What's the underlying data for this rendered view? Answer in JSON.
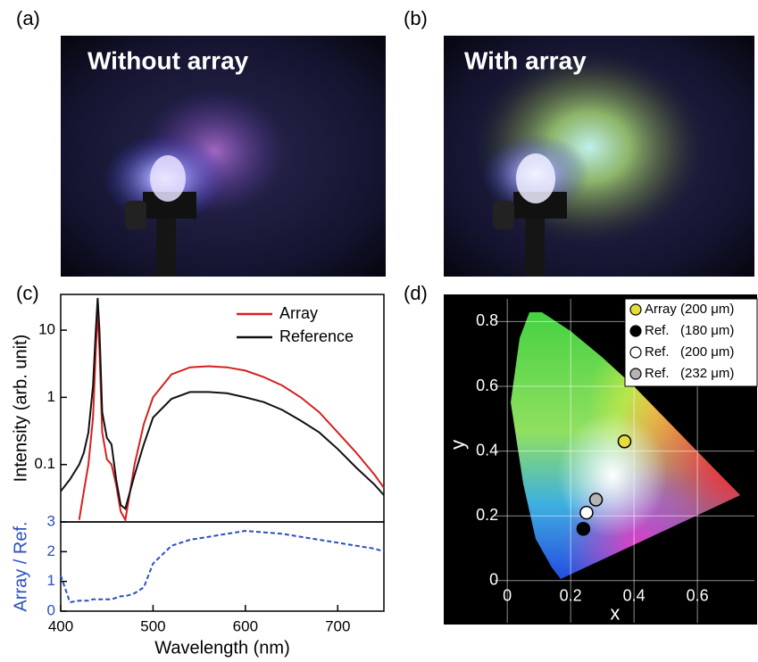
{
  "panels": [
    {
      "label": "(a)",
      "caption": "Without array"
    },
    {
      "label": "(b)",
      "caption": "With array"
    }
  ],
  "chart_data": [
    {
      "type": "line",
      "label": "(c)",
      "ylabel": "Intensity (arb. unit)",
      "yscale": "log",
      "xlim": [
        400,
        750
      ],
      "ylim": [
        0.014,
        34
      ],
      "yticks": [
        0.1,
        1,
        10
      ],
      "legend": "upper right",
      "x": [
        400,
        410,
        420,
        425,
        430,
        435,
        438,
        440,
        442,
        445,
        450,
        455,
        460,
        465,
        470,
        480,
        490,
        500,
        520,
        540,
        560,
        580,
        600,
        620,
        640,
        660,
        680,
        700,
        720,
        740,
        750
      ],
      "series": [
        {
          "name": "Array",
          "color": "#d62020",
          "values": [
            null,
            null,
            0.015,
            0.04,
            0.1,
            0.5,
            5,
            20,
            5,
            0.3,
            0.12,
            0.1,
            0.05,
            0.02,
            0.015,
            0.1,
            0.4,
            1.0,
            2.2,
            2.8,
            2.9,
            2.8,
            2.5,
            2.0,
            1.5,
            1.0,
            0.6,
            0.3,
            0.15,
            0.07,
            0.045
          ]
        },
        {
          "name": "Reference",
          "color": "#111111",
          "values": [
            0.04,
            0.06,
            0.1,
            0.15,
            0.3,
            1.5,
            10,
            30,
            10,
            0.6,
            0.25,
            0.2,
            0.06,
            0.025,
            0.022,
            0.07,
            0.2,
            0.5,
            0.95,
            1.2,
            1.2,
            1.15,
            1.0,
            0.85,
            0.65,
            0.45,
            0.3,
            0.17,
            0.09,
            0.05,
            0.035
          ]
        }
      ]
    },
    {
      "type": "line",
      "ylabel": "Array / Ref.",
      "ylabel_color": "#2b4fc0",
      "xlabel": "Wavelength (nm)",
      "xlim": [
        400,
        750
      ],
      "ylim": [
        0,
        3
      ],
      "xticks": [
        400,
        500,
        600,
        700
      ],
      "yticks": [
        0,
        1,
        2,
        3
      ],
      "x": [
        400,
        410,
        420,
        425,
        430,
        435,
        438,
        440,
        442,
        445,
        450,
        455,
        460,
        465,
        470,
        480,
        490,
        500,
        520,
        540,
        560,
        580,
        600,
        620,
        640,
        660,
        680,
        700,
        720,
        740,
        750
      ],
      "series": [
        {
          "color": "#2b4fc0",
          "linestyle": "dashed",
          "values": [
            1.2,
            0.3,
            0.35,
            0.35,
            0.35,
            0.4,
            0.4,
            0.4,
            0.4,
            0.4,
            0.4,
            0.4,
            0.45,
            0.5,
            0.5,
            0.6,
            0.8,
            1.6,
            2.2,
            2.4,
            2.5,
            2.6,
            2.7,
            2.65,
            2.6,
            2.5,
            2.4,
            2.3,
            2.2,
            2.1,
            2.0
          ]
        }
      ]
    },
    {
      "type": "scatter",
      "label": "(d)",
      "xlabel": "x",
      "ylabel": "y",
      "grid": true,
      "xlim": [
        -0.04,
        0.78
      ],
      "ylim": [
        -0.13,
        0.87
      ],
      "xticks": [
        0,
        0.2,
        0.4,
        0.6
      ],
      "yticks": [
        0,
        0.2,
        0.4,
        0.6,
        0.8
      ],
      "legend": "upper right",
      "series": [
        {
          "name": "Array (200 μm)",
          "color": "#e6dc3c",
          "x": [
            0.37
          ],
          "values": [
            0.43
          ]
        },
        {
          "name": "Ref.   (180 μm)",
          "color": "#000000",
          "x": [
            0.24
          ],
          "values": [
            0.16
          ]
        },
        {
          "name": "Ref.   (200 μm)",
          "color": "#ffffff",
          "x": [
            0.25
          ],
          "values": [
            0.21
          ]
        },
        {
          "name": "Ref.   (232 μm)",
          "color": "#b4b4b4",
          "x": [
            0.28
          ],
          "values": [
            0.25
          ]
        }
      ]
    }
  ]
}
